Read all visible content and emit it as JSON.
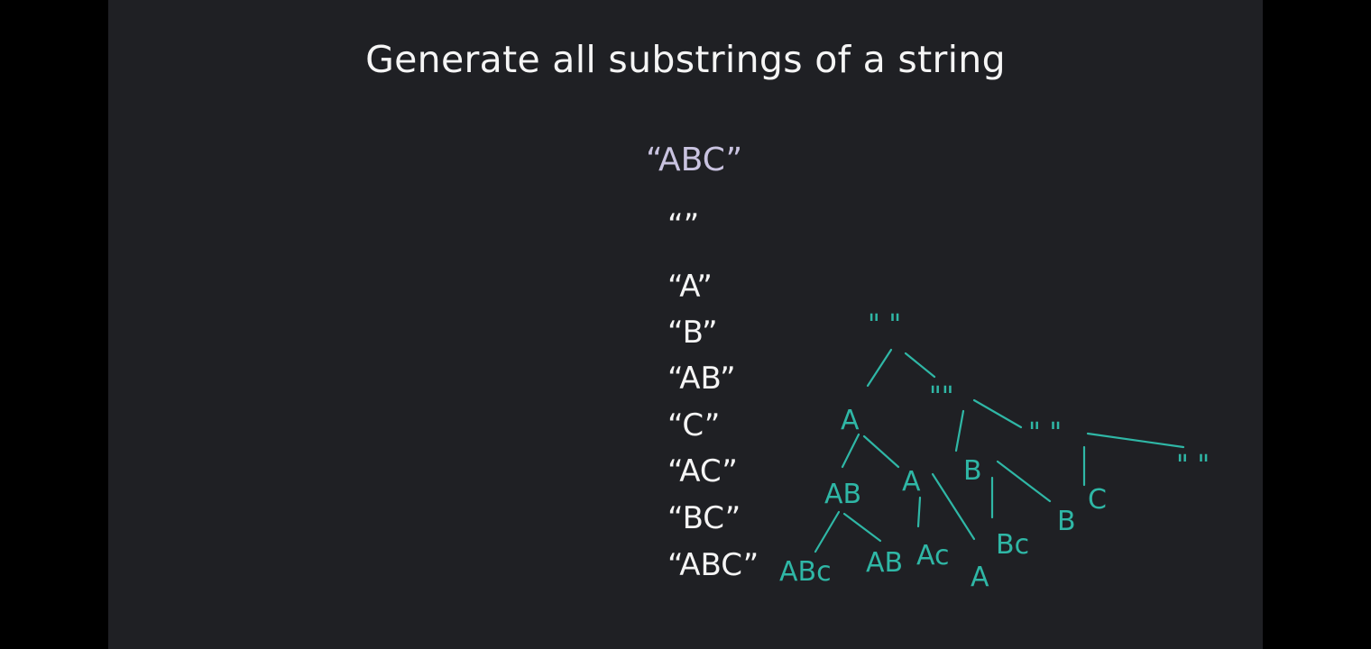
{
  "slide": {
    "title": "Generate all substrings of a string",
    "input": "“ABC”",
    "substrings": [
      "“”",
      "“A”",
      "“B”",
      "“AB”",
      "“C”",
      "“AC”",
      "“BC”",
      "“ABC”"
    ]
  },
  "tree": {
    "labels": [
      "\" \"",
      "A",
      "\"\"",
      "\" \"",
      "\" \"",
      "AB",
      "A",
      "B",
      "C",
      "B",
      "ABc",
      "AB",
      "Ac",
      "A",
      "Bc"
    ]
  },
  "colors": {
    "background": "#1f2024",
    "letterbox": "#000000",
    "text": "#f5f5f5",
    "input": "#c9c3e0",
    "ink": "#2fb7a6"
  }
}
